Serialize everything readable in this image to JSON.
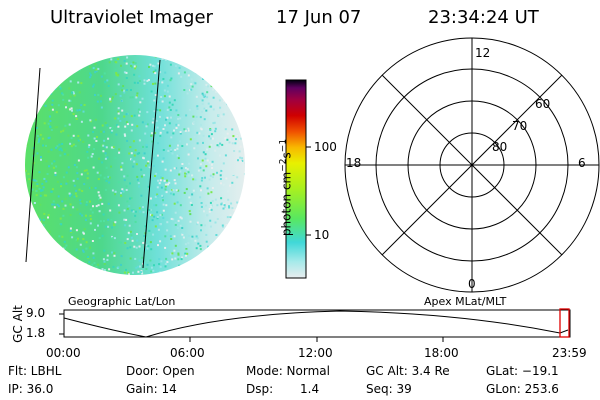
{
  "header": {
    "instrument": "Ultraviolet Imager",
    "date": "17 Jun 07",
    "time": "23:34:24 UT"
  },
  "colorbar": {
    "unit_label": "photon cm",
    "unit_exp1": "−2",
    "unit_s": "s",
    "unit_exp2": "−1",
    "ticks": [
      "100",
      "10"
    ]
  },
  "polar": {
    "mlt_labels": [
      "12",
      "18",
      "6",
      "0"
    ],
    "mlat_labels": [
      "60",
      "70",
      "80"
    ]
  },
  "panels": {
    "left_caption": "Geographic Lat/Lon",
    "right_caption": "Apex MLat/MLT"
  },
  "altitude_plot": {
    "ylabel": "GC Alt",
    "yticks": [
      "9.0",
      "1.8"
    ],
    "xticks": [
      "00:00",
      "06:00",
      "12:00",
      "18:00",
      "23:59"
    ]
  },
  "info": {
    "flt": "Flt: LBHL",
    "ip": "IP: 36.0",
    "door": "Door: Open",
    "gain": "Gain: 14",
    "mode": "Mode: Normal",
    "dsp_label": "Dsp:",
    "dsp_value": "1.4",
    "gc_alt": "GC Alt: 3.4 Re",
    "seq": "Seq: 39",
    "glat": "GLat: −19.1",
    "glon": "GLon: 253.6"
  },
  "colors": {
    "colorbar_stops": [
      "#e8ecee",
      "#a8eaea",
      "#40d8d8",
      "#58e860",
      "#a8f020",
      "#e8f000",
      "#f8b800",
      "#f05000",
      "#d00000",
      "#a00040",
      "#600060",
      "#000010"
    ]
  }
}
